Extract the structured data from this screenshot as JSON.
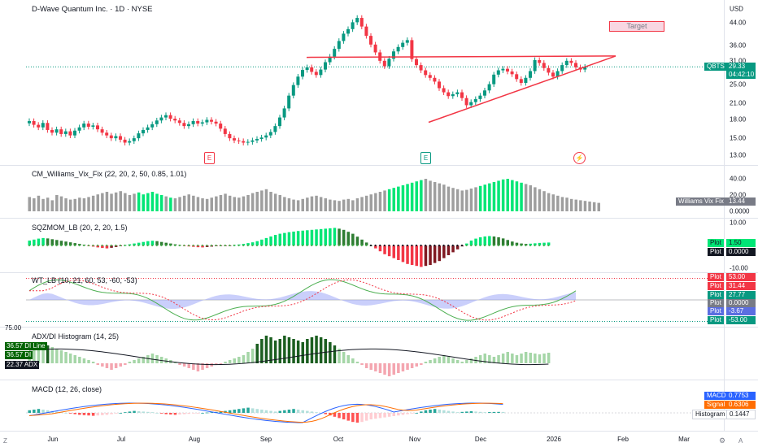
{
  "header": {
    "symbol_title": "D-Wave Quantum Inc. · 1D · NYSE",
    "currency": "USD"
  },
  "price_pane": {
    "y_ticks": [
      "44.00",
      "36.00",
      "31.00",
      "25.00",
      "21.00",
      "18.00",
      "15.00",
      "13.00"
    ],
    "last_ticker": "QBTS",
    "last_price": "29.33",
    "countdown": "04:42:10",
    "target_label": "Target",
    "event_e1": "E",
    "event_e2": "E",
    "event_split": "⚡"
  },
  "williams_vix": {
    "title": "CM_Williams_Vix_Fix (22, 20, 2, 50, 0.85, 1.01)",
    "y_ticks": [
      "40.00",
      "20.00",
      "0.0000"
    ],
    "name_tag": "Williams Vix Fix",
    "value_tag": "13.44",
    "values": [
      22,
      20,
      24,
      19,
      21,
      17,
      25,
      23,
      20,
      18,
      19,
      21,
      20,
      22,
      24,
      26,
      28,
      30,
      27,
      29,
      31,
      28,
      25,
      27,
      29,
      26,
      28,
      30,
      27,
      25,
      23,
      21,
      20,
      22,
      24,
      26,
      24,
      22,
      20,
      19,
      21,
      23,
      25,
      27,
      24,
      22,
      21,
      23,
      25,
      28,
      30,
      32,
      34,
      30,
      27,
      25,
      22,
      20,
      18,
      17,
      19,
      21,
      23,
      24,
      22,
      20,
      18,
      17,
      16,
      18,
      19,
      17,
      20,
      22,
      24,
      26,
      28,
      30,
      32,
      34,
      36,
      38,
      40,
      42,
      44,
      46,
      48,
      50,
      47,
      45,
      43,
      41,
      38,
      36,
      34,
      32,
      33,
      35,
      37,
      39,
      41,
      43,
      45,
      47,
      49,
      50,
      48,
      46,
      44,
      42,
      40,
      37,
      34,
      31,
      28,
      26,
      24,
      22,
      21,
      19,
      18,
      17,
      16,
      15,
      14,
      13
    ],
    "highlighted": [
      24,
      25,
      26,
      27,
      28,
      29,
      31,
      79,
      80,
      81,
      82,
      83,
      84,
      85,
      86,
      99,
      100,
      101,
      102,
      103,
      104,
      105,
      106,
      107,
      108
    ]
  },
  "sqzmom": {
    "title": "SQZMOM_LB (20, 2, 20, 1.5)",
    "y_ticks": [
      "10.00",
      "-10.00"
    ],
    "tags": [
      {
        "name": "Plot",
        "value": "1.50",
        "color": "#00e676"
      },
      {
        "name": "Plot",
        "value": "0.0000",
        "color": "#131722"
      }
    ],
    "values": [
      2.5,
      3,
      3.5,
      3.8,
      3.6,
      3.2,
      2.8,
      2.4,
      2,
      1.6,
      1.2,
      0.8,
      0.4,
      -0.2,
      -0.6,
      -1,
      -1.3,
      -1.5,
      -1.2,
      -0.8,
      -0.4,
      0.2,
      0.6,
      1,
      1.4,
      1.8,
      2.2,
      2.4,
      2.2,
      1.8,
      1.4,
      1,
      0.6,
      0.2,
      -0.2,
      -0.5,
      -0.7,
      -0.9,
      -1,
      -0.8,
      -0.6,
      -0.4,
      -0.3,
      -0.2,
      -0.1,
      0.2,
      0.5,
      0.8,
      1.2,
      1.6,
      2.2,
      3,
      3.8,
      4.6,
      5.4,
      6,
      6.4,
      6.8,
      7.1,
      7.4,
      7.6,
      7.8,
      8,
      8.2,
      8.4,
      8.6,
      8.8,
      9,
      8.6,
      8,
      7,
      6,
      4.5,
      3,
      1.5,
      0,
      -1.5,
      -3,
      -4.5,
      -5.5,
      -6.5,
      -7.5,
      -8.5,
      -9.5,
      -10,
      -10.5,
      -11,
      -10.5,
      -10,
      -9,
      -8,
      -6.5,
      -5,
      -3.5,
      -2,
      -0.5,
      1,
      2.5,
      3.5,
      4.2,
      4.6,
      4.8,
      4.6,
      4.2,
      3.6,
      2.8,
      2,
      1.4,
      1,
      0.8,
      0.9,
      1.1,
      1.3,
      1.4,
      1.5
    ]
  },
  "wt": {
    "title": "WT_LB (10, 21, 60, 53, -60, -53)",
    "tags": [
      {
        "name": "Plot",
        "value": "53.00",
        "color": "#f23645"
      },
      {
        "name": "Plot",
        "value": "31.44",
        "color": "#f23645"
      },
      {
        "name": "Plot",
        "value": "27.77",
        "color": "#089981"
      },
      {
        "name": "Plot",
        "value": "0.0000",
        "color": "#787b86"
      },
      {
        "name": "Plot",
        "value": "-3.67",
        "color": "#5b6ee1"
      },
      {
        "name": "Plot",
        "value": "-53.00",
        "color": "#089981"
      }
    ]
  },
  "adx": {
    "title": "ADX/DI Histogram (14, 25)",
    "top_tick": "75.00",
    "tags": [
      {
        "name": "DI Line",
        "value": "36.57",
        "color": "#006400"
      },
      {
        "name": "DI",
        "value": "36.57",
        "color": "#006400"
      },
      {
        "name": "ADX",
        "value": "22.37",
        "color": "#131722"
      }
    ],
    "values": [
      12,
      16,
      18,
      20,
      22,
      20,
      18,
      16,
      14,
      12,
      10,
      8,
      6,
      4,
      2,
      -2,
      -4,
      -6,
      -8,
      -6,
      -4,
      -2,
      2,
      4,
      6,
      8,
      10,
      12,
      10,
      8,
      6,
      4,
      2,
      -2,
      -4,
      -6,
      -8,
      -10,
      -8,
      -6,
      -4,
      -2,
      -1,
      2,
      4,
      6,
      8,
      10,
      14,
      18,
      24,
      30,
      34,
      32,
      28,
      30,
      34,
      32,
      30,
      28,
      26,
      30,
      32,
      34,
      32,
      30,
      26,
      22,
      18,
      14,
      10,
      6,
      2,
      -2,
      -6,
      -8,
      -10,
      -12,
      -14,
      -16,
      -14,
      -12,
      -10,
      -8,
      -6,
      -4,
      -2,
      2,
      4,
      6,
      8,
      10,
      8,
      6,
      4,
      2,
      4,
      6,
      8,
      10,
      12,
      10,
      8,
      10,
      12,
      14,
      12,
      10,
      12,
      14,
      13,
      12,
      11,
      12,
      13
    ]
  },
  "macd": {
    "title": "MACD (12, 26, close)",
    "tags": [
      {
        "name": "MACD",
        "value": "0.7753",
        "color": "#2962ff"
      },
      {
        "name": "Signal",
        "value": "0.6306",
        "color": "#ff6d00"
      },
      {
        "name": "Histogram",
        "value": "0.1447",
        "color": "#ffffff"
      }
    ],
    "values": [
      0.4,
      0.5,
      0.6,
      0.5,
      0.4,
      0.3,
      0.2,
      0.1,
      0,
      -0.1,
      -0.2,
      -0.3,
      -0.35,
      -0.4,
      -0.45,
      -0.4,
      -0.35,
      -0.3,
      -0.2,
      -0.1,
      0,
      0.1,
      0.2,
      0.3,
      0.25,
      0.2,
      0.15,
      0.1,
      0,
      -0.1,
      -0.2,
      -0.25,
      -0.3,
      -0.25,
      -0.2,
      -0.15,
      -0.1,
      -0.05,
      0,
      0.05,
      0.1,
      0.15,
      0.2,
      0.3,
      0.4,
      0.5,
      0.6,
      0.7,
      0.8,
      0.7,
      0.6,
      0.5,
      0.4,
      0.3,
      0.2,
      0.3,
      0.4,
      0.5,
      0.6,
      0.5,
      0.4,
      0.3,
      0.2,
      0.1,
      0,
      -0.2,
      -0.4,
      -0.6,
      -0.8,
      -1,
      -1.2,
      -1.4,
      -1.5,
      -1.4,
      -1.2,
      -1,
      -0.9,
      -0.8,
      -0.7,
      -0.6,
      -0.5,
      -0.4,
      -0.3,
      -0.2,
      -0.1,
      0,
      0.2,
      0.4,
      0.5,
      0.6,
      0.5,
      0.4,
      0.3,
      0.2,
      0.1,
      0.15,
      0.2,
      0.25,
      0.2,
      0.15,
      0.1,
      0.12,
      0.14,
      0.15,
      0.14
    ]
  },
  "time_axis": {
    "months": [
      "Jun",
      "Jul",
      "Aug",
      "Sep",
      "Oct",
      "Nov",
      "Dec",
      "2026",
      "Feb",
      "Mar"
    ],
    "left_icon": "Z",
    "right_icon": "A"
  },
  "price_series": [
    17.8,
    17.2,
    16.8,
    17.5,
    16.4,
    16.0,
    16.5,
    15.8,
    16.2,
    15.6,
    16.3,
    16.8,
    17.4,
    16.9,
    17.1,
    16.5,
    16.0,
    15.6,
    15.2,
    15.5,
    15.0,
    14.6,
    14.8,
    15.2,
    15.9,
    16.4,
    16.8,
    17.3,
    17.9,
    18.4,
    18.8,
    18.2,
    17.9,
    17.5,
    17.0,
    17.3,
    17.8,
    17.4,
    17.6,
    18.0,
    17.7,
    17.4,
    16.6,
    15.8,
    15.2,
    14.9,
    14.8,
    14.6,
    14.7,
    14.9,
    15.1,
    15.3,
    15.6,
    16.1,
    17.0,
    18.4,
    20.0,
    22.5,
    24.8,
    26.8,
    28.5,
    29.2,
    28.0,
    27.2,
    28.6,
    30.6,
    32.2,
    34.6,
    37.2,
    39.8,
    41.5,
    44.2,
    46.0,
    42.5,
    39.0,
    36.0,
    33.5,
    31.0,
    29.5,
    31.6,
    33.8,
    35.2,
    36.6,
    37.5,
    31.5,
    29.8,
    28.4,
    27.2,
    26.5,
    25.6,
    24.1,
    23.2,
    22.4,
    22.8,
    23.2,
    22.0,
    20.6,
    21.2,
    21.8,
    22.5,
    23.6,
    25.0,
    27.3,
    28.4,
    28.8,
    28.1,
    27.4,
    26.2,
    25.3,
    26.5,
    28.2,
    31.2,
    30.4,
    29.0,
    27.8,
    26.8,
    28.2,
    29.8,
    31.0,
    30.4,
    29.2,
    28.6,
    29.33
  ]
}
